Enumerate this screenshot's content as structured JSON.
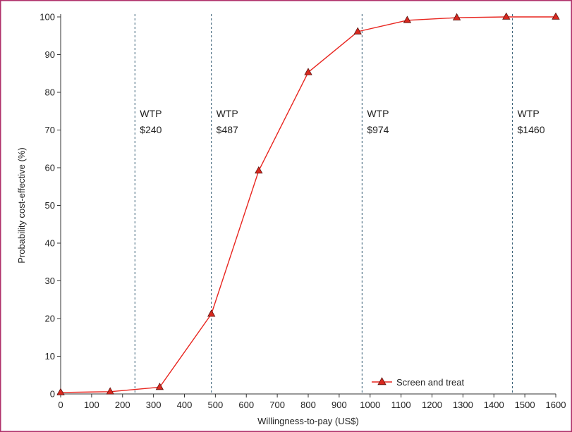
{
  "colors": {
    "frame": "#b0306a",
    "axis": "#333333",
    "series": "#e8251f",
    "marker_fill": "#d8281f",
    "marker_stroke": "#5a1410",
    "reference_line": "#2f5870"
  },
  "chart_data": {
    "type": "line",
    "xlabel": "Willingness-to-pay (US$)",
    "ylabel": "Probability cost-effective (%)",
    "xlim": [
      0,
      1600
    ],
    "ylim": [
      0,
      100
    ],
    "x_ticks": [
      0,
      100,
      200,
      300,
      400,
      500,
      600,
      700,
      800,
      900,
      1000,
      1100,
      1200,
      1300,
      1400,
      1500,
      1600
    ],
    "y_ticks": [
      0,
      10,
      20,
      30,
      40,
      50,
      60,
      70,
      80,
      90,
      100
    ],
    "grid": false,
    "legend_position": "bottom-right",
    "series": [
      {
        "name": "Screen and treat",
        "marker": "triangle-icon",
        "x": [
          0,
          160,
          320,
          487,
          640,
          800,
          960,
          1120,
          1280,
          1440,
          1600
        ],
        "y": [
          0.4,
          0.6,
          1.8,
          21.2,
          59.2,
          85.3,
          96.1,
          99.1,
          99.8,
          100,
          100
        ]
      }
    ],
    "reference_lines": [
      {
        "x": 240,
        "line1": "WTP",
        "line2": "$240"
      },
      {
        "x": 487,
        "line1": "WTP",
        "line2": "$487"
      },
      {
        "x": 974,
        "line1": "WTP",
        "line2": "$974"
      },
      {
        "x": 1460,
        "line1": "WTP",
        "line2": "$1460"
      }
    ]
  }
}
